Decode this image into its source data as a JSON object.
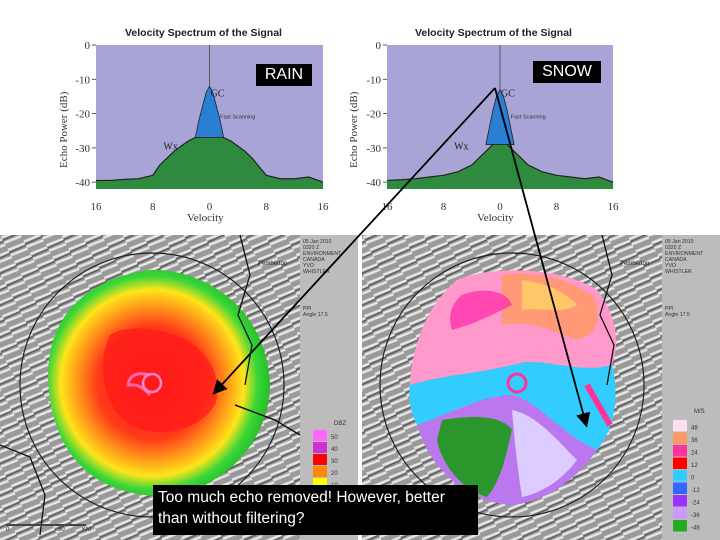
{
  "labels": {
    "rain": "RAIN",
    "snow": "SNOW",
    "caption": "Too much echo removed!  However, better than without filtering?"
  },
  "chart_data": [
    {
      "type": "area",
      "title": "Velocity Spectrum of the Signal",
      "xlabel": "Velocity",
      "ylabel": "Echo Power (dB)",
      "x_ticks": [
        "16",
        "8",
        "0",
        "8",
        "16"
      ],
      "y_ticks": [
        "0",
        "-10",
        "-20",
        "-30",
        "-40"
      ],
      "xlim": [
        -16,
        16
      ],
      "ylim": [
        -42,
        0
      ],
      "annotations": [
        "GC",
        "Wx",
        "Fast Scanning"
      ],
      "series": [
        {
          "name": "Wx",
          "x": [
            -16,
            -14,
            -12,
            -10,
            -8,
            -7,
            -6,
            -5,
            -4,
            -3,
            -2,
            -1,
            0,
            1,
            2,
            3,
            4,
            5,
            6,
            7,
            8,
            10,
            12,
            14,
            16
          ],
          "y": [
            -39.5,
            -39.5,
            -39.2,
            -39,
            -38,
            -35,
            -33,
            -31,
            -29.5,
            -28,
            -27,
            -26,
            -25,
            -26,
            -27,
            -28,
            -29.5,
            -31,
            -33,
            -35.5,
            -38,
            -39,
            -39,
            -38.5,
            -40
          ]
        },
        {
          "name": "GC",
          "x": [
            -2,
            -1.5,
            -1,
            -0.5,
            0,
            0.5,
            1,
            1.5,
            2
          ],
          "y": [
            -27,
            -22,
            -18,
            -14,
            -12,
            -14,
            -18,
            -22,
            -27
          ]
        }
      ]
    },
    {
      "type": "area",
      "title": "Velocity Spectrum of the Signal",
      "xlabel": "Velocity",
      "ylabel": "Echo Power (dB)",
      "x_ticks": [
        "16",
        "8",
        "0",
        "8",
        "16"
      ],
      "y_ticks": [
        "0",
        "-10",
        "-20",
        "-30",
        "-40"
      ],
      "xlim": [
        -16,
        16
      ],
      "ylim": [
        -42,
        0
      ],
      "annotations": [
        "GC",
        "Wx",
        "Fast Scanning"
      ],
      "series": [
        {
          "name": "Wx",
          "x": [
            -16,
            -14,
            -12,
            -10,
            -8,
            -6,
            -5,
            -4,
            -3,
            -2,
            -1,
            0,
            1,
            2,
            3,
            4,
            5,
            6,
            8,
            10,
            12,
            14,
            16
          ],
          "y": [
            -39.5,
            -39.3,
            -39,
            -38.5,
            -38,
            -37,
            -36,
            -35,
            -33,
            -31,
            -29,
            -27,
            -29,
            -31,
            -33,
            -35,
            -36,
            -37,
            -38,
            -38.5,
            -39,
            -38.5,
            -40
          ]
        },
        {
          "name": "GC",
          "x": [
            -2,
            -1.5,
            -1,
            -0.5,
            0,
            0.5,
            1,
            1.5,
            2
          ],
          "y": [
            -29,
            -24,
            -19,
            -15,
            -13,
            -15,
            -19,
            -24,
            -29
          ]
        }
      ]
    }
  ],
  "radar": {
    "left": {
      "timestamp": "05 Jan 2010\n0320 Z\nENVIRONMENT\nCANADA\nYVO\nWHISTLER",
      "scan": "PPI\nAngle 17.5",
      "place": "Pemberton",
      "unit": "DBZ",
      "scale": [
        "50",
        "40",
        "30",
        "20",
        "10",
        "0"
      ],
      "scale_colors": [
        "#ff66ff",
        "#cc33cc",
        "#ff0000",
        "#ff8800",
        "#ffff00",
        "#33cc33"
      ]
    },
    "right": {
      "timestamp": "05 Jan 2010\n0320 Z\nENVIRONMENT\nCANADA\nYVO\nWHISTLER",
      "scan": "PPI\nAngle 17.5",
      "place": "Pemberton",
      "unit": "M/S",
      "scale": [
        "48",
        "36",
        "24",
        "12",
        "0",
        "-12",
        "-24",
        "-36",
        "-48"
      ],
      "scale_colors": [
        "#ffe0f0",
        "#ff9966",
        "#ff3399",
        "#ff0000",
        "#33ccff",
        "#3366ff",
        "#9933ff",
        "#cc99ff",
        "#22aa22"
      ]
    }
  }
}
